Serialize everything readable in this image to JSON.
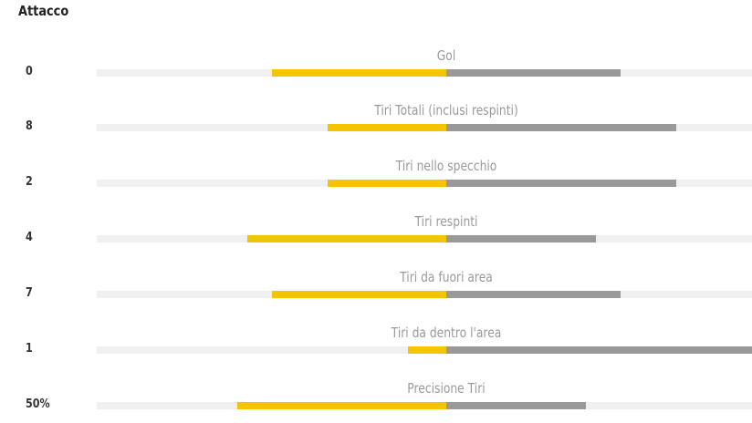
{
  "section": {
    "title": "Attacco"
  },
  "colors": {
    "home": "#f5c400",
    "away": "#999999",
    "track": "#f0f0f0"
  },
  "chart_data": {
    "type": "bar",
    "title": "Attacco",
    "categories": [
      "Gol",
      "Tiri Totali (inclusi respinti)",
      "Tiri nello specchio",
      "Tiri respinti",
      "Tiri da fuori area",
      "Tiri da dentro l'area",
      "Precisione Tiri"
    ],
    "values_display": [
      "0",
      "8",
      "2",
      "4",
      "7",
      "1",
      "50%"
    ],
    "share_home": [
      0.5,
      0.34,
      0.34,
      0.57,
      0.5,
      0.11,
      0.6
    ],
    "share_away": [
      0.5,
      0.66,
      0.66,
      0.43,
      0.5,
      0.89,
      0.4
    ]
  }
}
